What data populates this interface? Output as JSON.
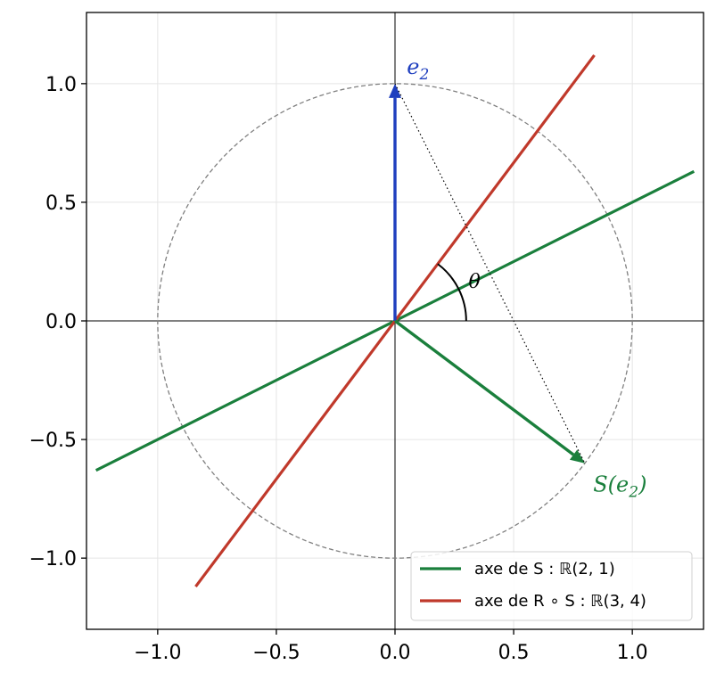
{
  "chart_data": {
    "type": "line",
    "xlim": [
      -1.3,
      1.3
    ],
    "ylim": [
      -1.3,
      1.3
    ],
    "grid": true,
    "legend_placement": "lower-right",
    "x_ticks": [
      -1.0,
      -0.5,
      0.0,
      0.5,
      1.0
    ],
    "y_ticks": [
      -1.0,
      -0.5,
      0.0,
      0.5,
      1.0
    ],
    "x_tick_labels": [
      "−1.0",
      "−0.5",
      "0.0",
      "0.5",
      "1.0"
    ],
    "y_tick_labels": [
      "−1.0",
      "−0.5",
      "0.0",
      "0.5",
      "1.0"
    ],
    "unit_circle": {
      "center": [
        0,
        0
      ],
      "radius": 1.0,
      "style": "dashed",
      "color": "#808080"
    },
    "series": [
      {
        "name": "axe de S : ℝ(2, 1)",
        "legend": "axe de S : ℝ(2, 1)",
        "color": "#1a7f3c",
        "x": [
          -1.26,
          1.26
        ],
        "y": [
          -0.63,
          0.63
        ]
      },
      {
        "name": "axe de R ∘ S : ℝ(3, 4)",
        "legend": "axe de R ∘ S : ℝ(3, 4)",
        "color": "#c0392b",
        "x": [
          -0.84,
          0.84
        ],
        "y": [
          -1.12,
          1.12
        ]
      }
    ],
    "vectors": [
      {
        "label": "e",
        "subscript": "2",
        "from": [
          0,
          0
        ],
        "to": [
          0,
          1
        ],
        "color": "#1f3fbf"
      },
      {
        "label": "S(e",
        "subscript": "2",
        "label_end": ")",
        "from": [
          0,
          0
        ],
        "to": [
          0.8,
          -0.6
        ],
        "color": "#1a7f3c"
      }
    ],
    "dotted_segment": {
      "from": [
        0,
        1
      ],
      "to": [
        0.8,
        -0.6
      ],
      "color": "#000000"
    },
    "angle_arc": {
      "label": "θ",
      "radius": 0.3,
      "start_deg": 0,
      "end_deg": 53.13
    }
  }
}
